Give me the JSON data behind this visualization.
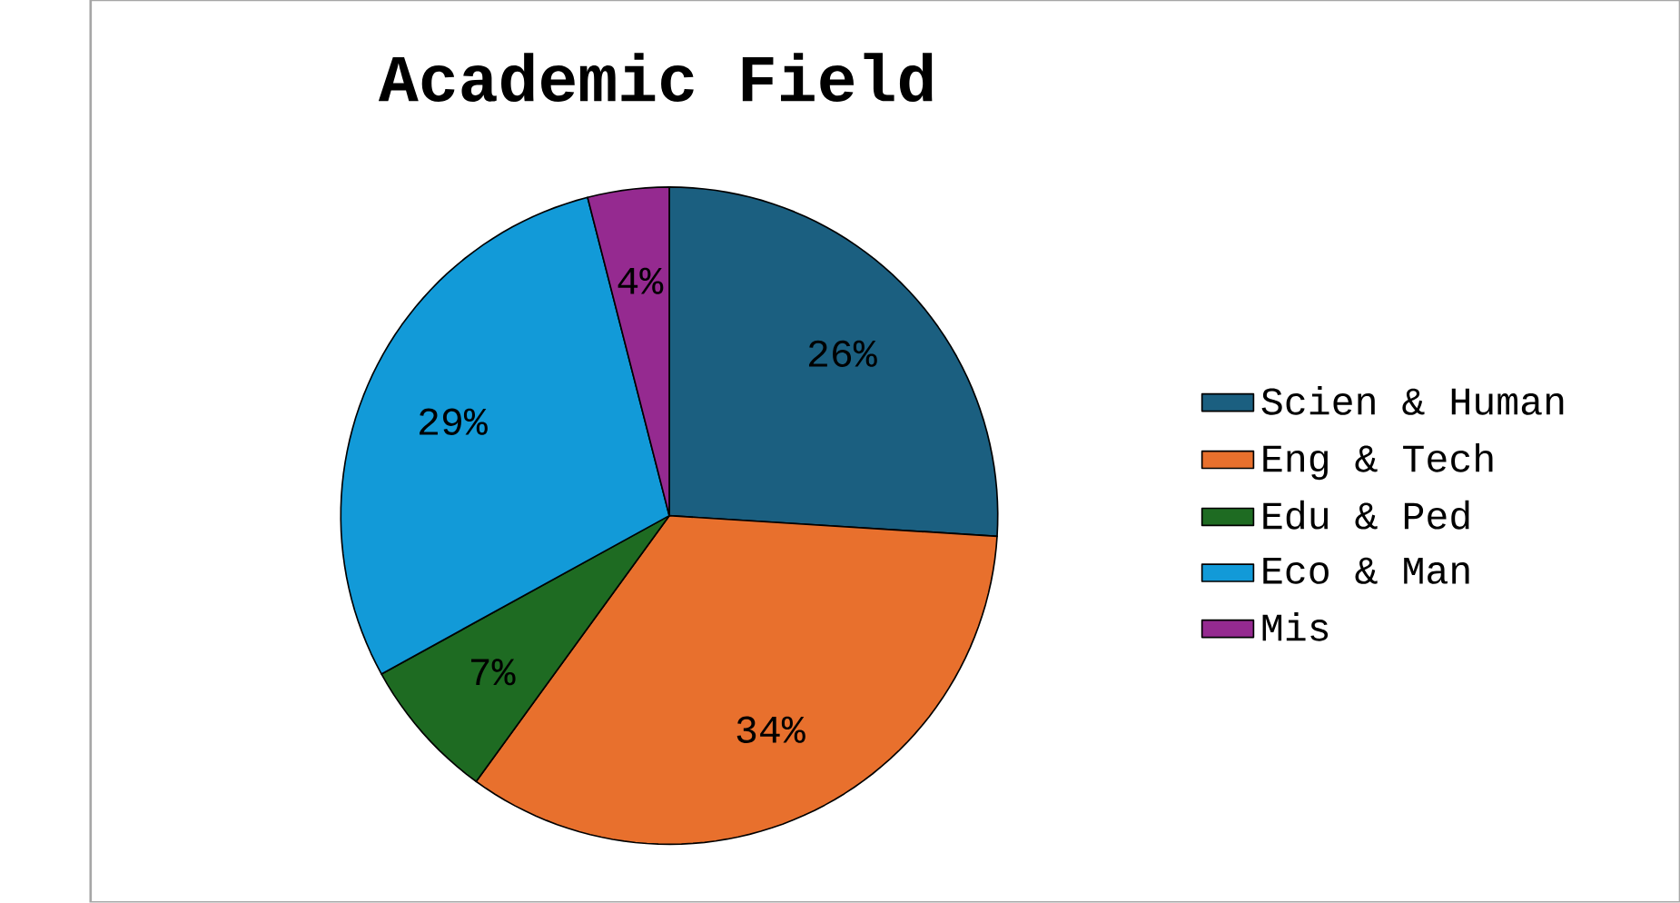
{
  "chart_data": {
    "type": "pie",
    "title": "Academic Field",
    "categories": [
      "Scien & Human",
      "Eng & Tech",
      "Edu & Ped",
      "Eco & Man",
      "Mis"
    ],
    "values": [
      26,
      34,
      7,
      29,
      4
    ],
    "value_labels": [
      "26%",
      "34%",
      "7%",
      "29%",
      "4%"
    ],
    "colors": [
      "#1b5f80",
      "#e8702d",
      "#1e6b22",
      "#129ad8",
      "#952a90"
    ],
    "legend": "right"
  }
}
